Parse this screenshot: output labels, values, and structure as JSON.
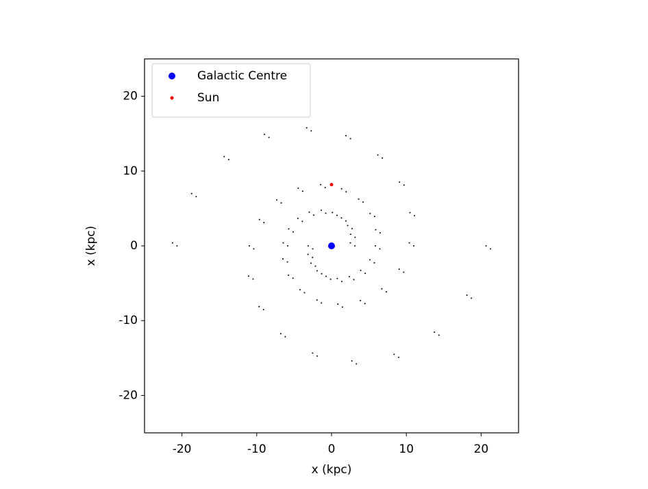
{
  "chart_data": {
    "type": "scatter",
    "xlabel": "x (kpc)",
    "ylabel": "x (kpc)",
    "xlim": [
      -25,
      25
    ],
    "ylim": [
      -25,
      25
    ],
    "xticks": [
      -20,
      -10,
      0,
      10,
      20
    ],
    "yticks": [
      -20,
      -10,
      0,
      10,
      20
    ],
    "legend": "upper left",
    "series": [
      {
        "color": "#000000",
        "marker_size": 1,
        "x": [
          -3.12,
          -3.15,
          -2.75,
          -1.93,
          -0.72,
          0.77,
          2.38,
          3.9,
          5.13,
          5.86,
          5.9,
          5.16,
          3.62,
          1.35,
          -1.45,
          -4.46,
          -7.32,
          -9.64,
          -11,
          -11.09,
          -9.69,
          -6.79,
          -2.53,
          2.72,
          8.37,
          13.75,
          18.1,
          20.66,
          3.12,
          3.15,
          2.75,
          1.93,
          0.72,
          -0.77,
          -2.38,
          -3.9,
          -5.13,
          -5.86,
          -5.9,
          -5.16,
          -3.62,
          -1.35,
          1.45,
          4.46,
          7.32,
          9.64,
          11,
          11.09,
          9.69,
          6.79,
          2.53,
          -2.72,
          -8.37,
          -13.75,
          -18.1,
          -20.66,
          -2.52,
          -2.55,
          -2.15,
          -1.33,
          -0.12,
          1.37,
          2.98,
          4.5,
          5.73,
          6.46,
          6.5,
          5.76,
          4.22,
          1.95,
          -0.85,
          -3.86,
          -6.72,
          -9.04,
          -10.4,
          -10.49,
          -9.09,
          -6.19,
          -1.93,
          3.32,
          8.97,
          14.35,
          18.7,
          21.26,
          2.52,
          2.55,
          2.15,
          1.33,
          0.12,
          -1.37,
          -2.98,
          -4.5,
          -5.73,
          -6.46,
          -6.5,
          -5.76,
          -4.22,
          -1.95,
          0.85,
          3.86,
          6.72,
          9.04,
          10.4,
          10.49,
          9.09,
          6.19,
          1.93,
          -3.32,
          -8.97,
          -14.35,
          -18.7,
          -21.26
        ],
        "values": [
          0,
          -1.15,
          -2.31,
          -3.33,
          -4.07,
          -4.36,
          -4.11,
          -3.27,
          -1.87,
          0,
          2.15,
          4.33,
          6.26,
          7.63,
          8.19,
          7.72,
          6.15,
          3.51,
          0,
          -4.04,
          -8.13,
          -11.75,
          -14.33,
          -15.38,
          -14.5,
          -11.54,
          -6.59,
          0,
          0,
          1.15,
          2.31,
          3.33,
          4.07,
          4.36,
          4.11,
          3.27,
          1.87,
          0,
          -2.15,
          -4.33,
          -6.26,
          -7.63,
          -8.19,
          -7.72,
          -6.15,
          -3.51,
          0,
          4.04,
          8.13,
          11.75,
          14.33,
          15.38,
          14.5,
          11.54,
          6.59,
          0,
          -0.4,
          -1.55,
          -2.71,
          -3.73,
          -4.47,
          -4.76,
          -4.51,
          -3.67,
          -2.27,
          -0.4,
          1.75,
          3.93,
          5.86,
          7.23,
          7.79,
          7.32,
          5.75,
          3.11,
          -0.4,
          -4.44,
          -8.53,
          -12.15,
          -14.73,
          -15.78,
          -14.9,
          -11.94,
          -6.99,
          -0.4,
          0.4,
          1.55,
          2.71,
          3.73,
          4.47,
          4.76,
          4.51,
          3.67,
          2.27,
          0.4,
          -1.75,
          -3.93,
          -5.86,
          -7.23,
          -7.79,
          -7.32,
          -5.75,
          -3.11,
          0.4,
          4.44,
          8.53,
          12.15,
          14.73,
          15.78,
          14.9,
          11.94,
          6.99,
          0.4
        ]
      },
      {
        "name": "Galactic Centre",
        "color": "#0000ff",
        "marker_size": 5,
        "x": [
          0
        ],
        "values": [
          0
        ]
      },
      {
        "name": "Sun",
        "color": "#ff0000",
        "marker_size": 2.5,
        "x": [
          0
        ],
        "values": [
          8.2
        ]
      }
    ]
  }
}
